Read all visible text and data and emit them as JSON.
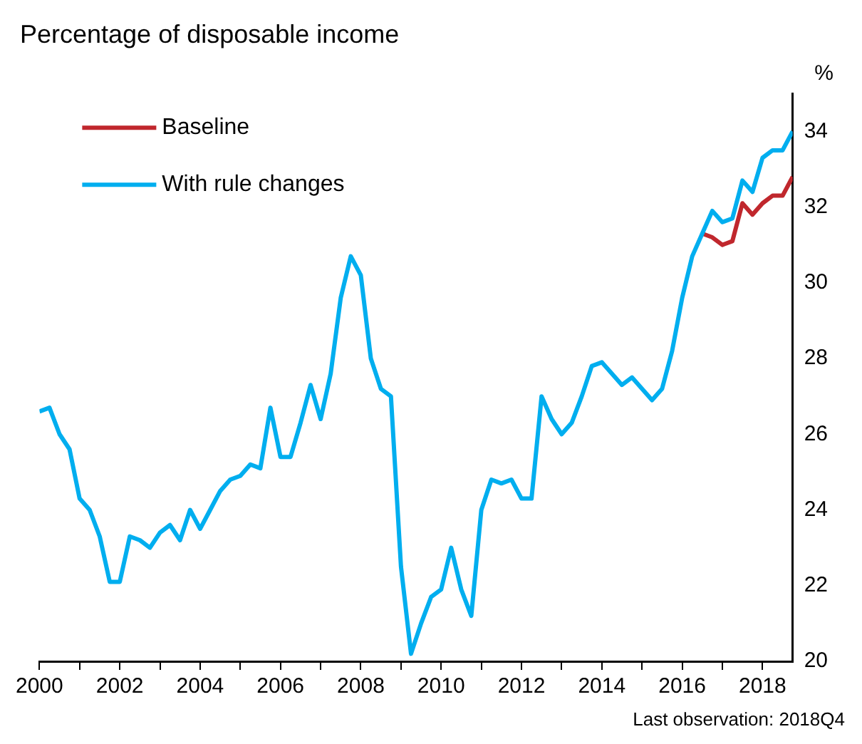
{
  "chart_data": {
    "type": "line",
    "title": "Percentage of disposable income",
    "ylabel": "%",
    "annotations": [
      "Last observation: 2018Q4"
    ],
    "xlim": [
      2000,
      2018.75
    ],
    "xticks": [
      {
        "value": 2000,
        "label": "2000"
      },
      {
        "value": 2001,
        "label": null
      },
      {
        "value": 2002,
        "label": "2002"
      },
      {
        "value": 2003,
        "label": null
      },
      {
        "value": 2004,
        "label": "2004"
      },
      {
        "value": 2005,
        "label": null
      },
      {
        "value": 2006,
        "label": "2006"
      },
      {
        "value": 2007,
        "label": null
      },
      {
        "value": 2008,
        "label": "2008"
      },
      {
        "value": 2009,
        "label": null
      },
      {
        "value": 2010,
        "label": "2010"
      },
      {
        "value": 2011,
        "label": null
      },
      {
        "value": 2012,
        "label": "2012"
      },
      {
        "value": 2013,
        "label": null
      },
      {
        "value": 2014,
        "label": "2014"
      },
      {
        "value": 2015,
        "label": null
      },
      {
        "value": 2016,
        "label": "2016"
      },
      {
        "value": 2017,
        "label": null
      },
      {
        "value": 2018,
        "label": "2018"
      }
    ],
    "ylim": [
      20,
      35
    ],
    "yticks": [
      20,
      22,
      24,
      26,
      28,
      30,
      32,
      34
    ],
    "grid": false,
    "legend": "top left",
    "marker": "none",
    "line_style": "solid",
    "series": [
      {
        "name": "Baseline",
        "color": "#c0272d",
        "x": [
          2016.5,
          2016.75,
          2017,
          2017.25,
          2017.5,
          2017.75,
          2018,
          2018.25,
          2018.5,
          2018.75
        ],
        "values": [
          31.3,
          31.2,
          31.0,
          31.1,
          32.1,
          31.8,
          32.1,
          32.3,
          32.3,
          32.8
        ]
      },
      {
        "name": "With rule changes",
        "color": "#00aeef",
        "x": [
          2000,
          2000.25,
          2000.5,
          2000.75,
          2001,
          2001.25,
          2001.5,
          2001.75,
          2002,
          2002.25,
          2002.5,
          2002.75,
          2003,
          2003.25,
          2003.5,
          2003.75,
          2004,
          2004.25,
          2004.5,
          2004.75,
          2005,
          2005.25,
          2005.5,
          2005.75,
          2006,
          2006.25,
          2006.5,
          2006.75,
          2007,
          2007.25,
          2007.5,
          2007.75,
          2008,
          2008.25,
          2008.5,
          2008.75,
          2009,
          2009.25,
          2009.5,
          2009.75,
          2010,
          2010.25,
          2010.5,
          2010.75,
          2011,
          2011.25,
          2011.5,
          2011.75,
          2012,
          2012.25,
          2012.5,
          2012.75,
          2013,
          2013.25,
          2013.5,
          2013.75,
          2014,
          2014.25,
          2014.5,
          2014.75,
          2015,
          2015.25,
          2015.5,
          2015.75,
          2016,
          2016.25,
          2016.5,
          2016.75,
          2017,
          2017.25,
          2017.5,
          2017.75,
          2018,
          2018.25,
          2018.5,
          2018.75
        ],
        "values": [
          26.6,
          26.7,
          26.0,
          25.6,
          24.3,
          24.0,
          23.3,
          22.1,
          22.1,
          23.3,
          23.2,
          23.0,
          23.4,
          23.6,
          23.2,
          24.0,
          23.5,
          24.0,
          24.5,
          24.8,
          24.9,
          25.2,
          25.1,
          26.7,
          25.4,
          25.4,
          26.3,
          27.3,
          26.4,
          27.6,
          29.6,
          30.7,
          30.2,
          28.0,
          27.2,
          27.0,
          22.5,
          20.2,
          21.0,
          21.7,
          21.9,
          23.0,
          21.9,
          21.2,
          24.0,
          24.8,
          24.7,
          24.8,
          24.3,
          24.3,
          27.0,
          26.4,
          26.0,
          26.3,
          27.0,
          27.8,
          27.9,
          27.6,
          27.3,
          27.5,
          27.2,
          26.9,
          27.2,
          28.2,
          29.6,
          30.7,
          31.3,
          31.9,
          31.6,
          31.7,
          32.7,
          32.4,
          33.3,
          33.5,
          33.5,
          34.0
        ]
      }
    ]
  }
}
